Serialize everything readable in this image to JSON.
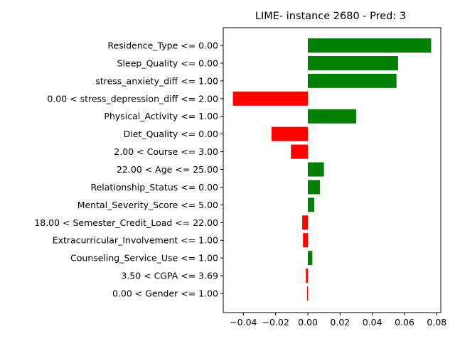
{
  "chart_data": {
    "type": "bar",
    "orientation": "horizontal",
    "title": "LIME- instance 2680 - Pred: 3",
    "xlabel": "",
    "ylabel": "",
    "xlim": [
      -0.0525,
      0.0825
    ],
    "xticks": [
      -0.04,
      -0.02,
      0.0,
      0.02,
      0.04,
      0.06,
      0.08
    ],
    "xtick_labels": [
      "−0.04",
      "−0.02",
      "0.00",
      "0.02",
      "0.04",
      "0.06",
      "0.08"
    ],
    "grid": false,
    "colors": {
      "positive": "#008000",
      "negative": "#ff0000"
    },
    "categories": [
      "Residence_Type <= 0.00",
      "Sleep_Quality <= 0.00",
      "stress_anxiety_diff <= 1.00",
      "0.00 < stress_depression_diff <= 2.00",
      "Physical_Activity <= 1.00",
      "Diet_Quality <= 0.00",
      "2.00 < Course <= 3.00",
      "22.00 < Age <= 25.00",
      "Relationship_Status <= 0.00",
      "Mental_Severity_Score <= 5.00",
      "18.00 < Semester_Credit_Load <= 22.00",
      "Extracurricular_Involvement <= 1.00",
      "Counseling_Service_Use <= 1.00",
      "3.50 < CGPA <= 3.69",
      "0.00 < Gender <= 1.00"
    ],
    "values": [
      0.0765,
      0.056,
      0.055,
      -0.0465,
      0.03,
      -0.0225,
      -0.0105,
      0.01,
      0.0075,
      0.004,
      -0.0035,
      -0.003,
      0.0028,
      -0.0012,
      -0.0005
    ]
  }
}
